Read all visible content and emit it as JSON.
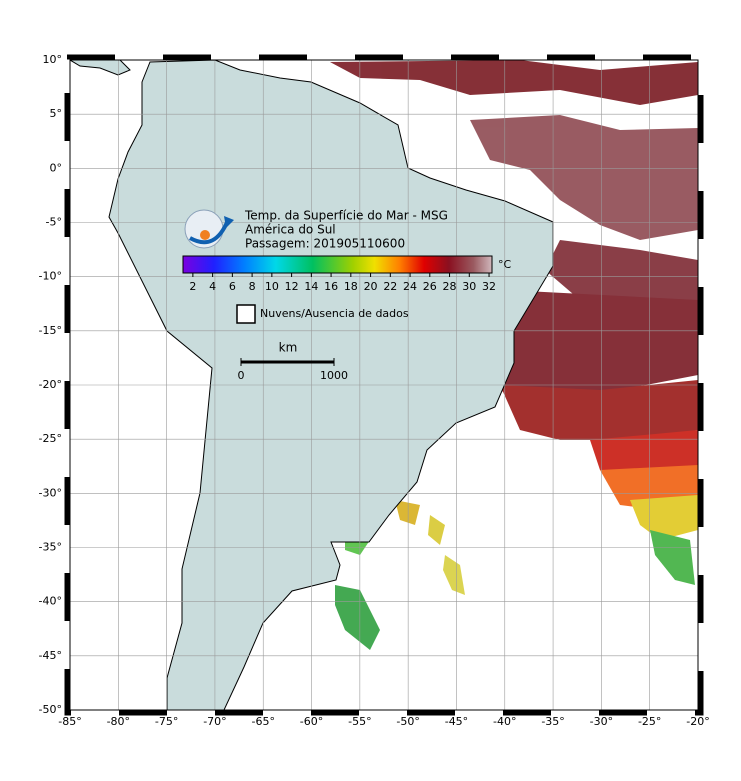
{
  "map": {
    "title": "Temp. da Superfície do Mar - MSG",
    "region": "América do Sul",
    "pass": "Passagem: 201905110600",
    "lon_lim": [
      -85,
      -20
    ],
    "lat_lim": [
      10,
      -50
    ],
    "lat_ticks": [
      {
        "value": 10,
        "label": "10°"
      },
      {
        "value": 5,
        "label": "5°"
      },
      {
        "value": 0,
        "label": "0°"
      },
      {
        "value": -5,
        "label": "-5°"
      },
      {
        "value": -10,
        "label": "-10°"
      },
      {
        "value": -15,
        "label": "-15°"
      },
      {
        "value": -20,
        "label": "-20°"
      },
      {
        "value": -25,
        "label": "-25°"
      },
      {
        "value": -30,
        "label": "-30°"
      },
      {
        "value": -35,
        "label": "-35°"
      },
      {
        "value": -40,
        "label": "-40°"
      },
      {
        "value": -45,
        "label": "-45°"
      },
      {
        "value": -50,
        "label": "-50°"
      }
    ],
    "lon_ticks": [
      {
        "value": -85,
        "label": "-85°"
      },
      {
        "value": -80,
        "label": "-80°"
      },
      {
        "value": -75,
        "label": "-75°"
      },
      {
        "value": -70,
        "label": "-70°"
      },
      {
        "value": -65,
        "label": "-65°"
      },
      {
        "value": -60,
        "label": "-60°"
      },
      {
        "value": -55,
        "label": "-55°"
      },
      {
        "value": -50,
        "label": "-50°"
      },
      {
        "value": -45,
        "label": "-45°"
      },
      {
        "value": -40,
        "label": "-40°"
      },
      {
        "value": -35,
        "label": "-35°"
      },
      {
        "value": -30,
        "label": "-30°"
      },
      {
        "value": -25,
        "label": "-25°"
      },
      {
        "value": -20,
        "label": "-20°"
      }
    ],
    "colorbar": {
      "lim": [
        1,
        32.3
      ],
      "ticks": [
        2,
        4,
        6,
        8,
        10,
        12,
        14,
        16,
        18,
        20,
        22,
        24,
        26,
        28,
        30,
        32
      ],
      "unit": "°C"
    },
    "legend": "Nuvens/Ausencia de dados",
    "scale": {
      "unit": "km",
      "lim": [
        0,
        1000
      ],
      "ticks": [
        0,
        1000
      ]
    }
  }
}
